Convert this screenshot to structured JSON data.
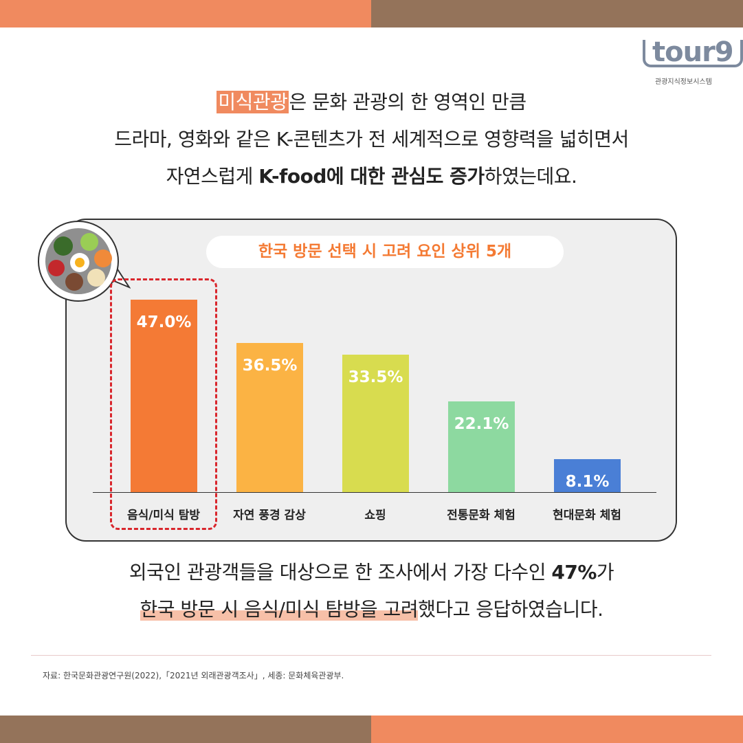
{
  "logo": {
    "word": "tour9",
    "subtitle": "관광지식정보시스템"
  },
  "intro": {
    "line1_highlight": "미식관광",
    "line1_rest": "은 문화 관광의 한 영역인 만큼",
    "line2": "드라마, 영화와 같은 K-콘텐츠가 전 세계적으로 영향력을 넓히면서",
    "line3_a": "자연스럽게 ",
    "line3_b": "K-food에 대한 관심도 증가",
    "line3_c": "하였는데요."
  },
  "chart_data": {
    "type": "bar",
    "title": "한국 방문 선택 시 고려 요인 상위 5개",
    "categories": [
      "음식/미식 탐방",
      "자연 풍경 감상",
      "쇼핑",
      "전통문화 체험",
      "현대문화 체험"
    ],
    "values": [
      47.0,
      36.5,
      33.5,
      22.1,
      8.1
    ],
    "value_labels": [
      "47.0%",
      "36.5%",
      "33.5%",
      "22.1%",
      "8.1%"
    ],
    "colors": [
      "#f47a35",
      "#fbb344",
      "#d8dc4f",
      "#8dd9a0",
      "#4a7fd6"
    ],
    "highlighted_category": "음식/미식 탐방",
    "ylim": [
      0,
      50
    ],
    "grid": false
  },
  "outro": {
    "line1_a": "외국인 관광객들을 대상으로 한 조사에서 가장 다수인 ",
    "line1_b": "47%",
    "line1_c": "가",
    "line2_a": "한국 방문 시 음식/미식 탐방을 고려",
    "line2_b": "했다고 응답하였습니다."
  },
  "source": "자료: 한국문화관광연구원(2022),「2021년 외래관광객조사」, 세종: 문화체육관광부.",
  "colors": {
    "orange": "#f08a5f",
    "brown": "#94735a"
  }
}
